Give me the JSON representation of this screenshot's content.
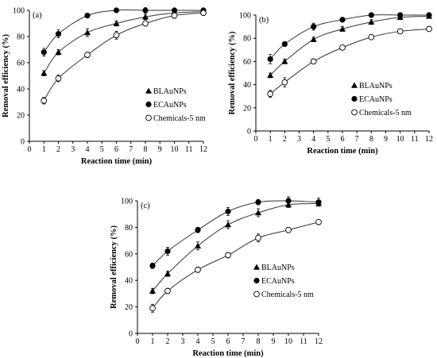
{
  "chart_data": [
    {
      "type": "scatter",
      "panel_label": "(a)",
      "xlabel": "Reaction time (min)",
      "ylabel": "Removal efficiency (%)",
      "xlim": [
        0,
        12
      ],
      "ylim": [
        0,
        100
      ],
      "xticks": [
        0,
        1,
        2,
        3,
        4,
        5,
        6,
        7,
        8,
        9,
        10,
        11,
        12
      ],
      "yticks": [
        0,
        20,
        40,
        60,
        80,
        100
      ],
      "grid": false,
      "legend_position": "bottom-right",
      "x": [
        1,
        2,
        4,
        6,
        8,
        10,
        12
      ],
      "series": [
        {
          "name": "BLAuNPs",
          "marker": "triangle",
          "values": [
            52,
            68,
            83,
            90,
            95,
            98,
            99
          ],
          "errors": [
            2,
            2,
            3,
            2,
            2,
            1.5,
            1.5
          ]
        },
        {
          "name": "ECAuNPs",
          "marker": "filled-circle",
          "values": [
            68,
            82,
            96,
            100,
            100,
            100,
            100
          ],
          "errors": [
            3,
            3,
            1.5,
            1,
            2,
            1,
            1
          ]
        },
        {
          "name": "Chemicals-5 nm",
          "marker": "open-circle",
          "values": [
            31,
            48,
            66,
            81,
            90,
            96,
            98
          ],
          "errors": [
            2.5,
            2.5,
            2,
            3,
            2,
            2,
            2
          ]
        }
      ]
    },
    {
      "type": "scatter",
      "panel_label": "(b)",
      "xlabel": "Reaction time (min)",
      "ylabel": "Removal efficiency (%)",
      "xlim": [
        0,
        12
      ],
      "ylim": [
        0,
        100
      ],
      "xticks": [
        0,
        1,
        2,
        3,
        4,
        5,
        6,
        7,
        8,
        9,
        10,
        11,
        12
      ],
      "yticks": [
        0,
        20,
        40,
        60,
        80,
        100
      ],
      "grid": false,
      "legend_position": "bottom-right",
      "x": [
        1,
        2,
        4,
        6,
        8,
        10,
        12
      ],
      "series": [
        {
          "name": "BLAuNPs",
          "marker": "triangle",
          "values": [
            48,
            60,
            79,
            88,
            94,
            98,
            99
          ],
          "errors": [
            2,
            2,
            2,
            2,
            2,
            1.5,
            1.5
          ]
        },
        {
          "name": "ECAuNPs",
          "marker": "filled-circle",
          "values": [
            62,
            75,
            90,
            96,
            100,
            100,
            100
          ],
          "errors": [
            4,
            2,
            3,
            2,
            1,
            1,
            1
          ]
        },
        {
          "name": "Chemicals-5 nm",
          "marker": "open-circle",
          "values": [
            32,
            42,
            60,
            72,
            81,
            86,
            88
          ],
          "errors": [
            3,
            4,
            2,
            2,
            2,
            2,
            2
          ]
        }
      ]
    },
    {
      "type": "scatter",
      "panel_label": "(c)",
      "xlabel": "Reaction time (min)",
      "ylabel": "Removal efficiency (%)",
      "xlim": [
        0,
        12
      ],
      "ylim": [
        0,
        100
      ],
      "xticks": [
        0,
        1,
        2,
        3,
        4,
        5,
        6,
        7,
        8,
        9,
        10,
        11,
        12
      ],
      "yticks": [
        0,
        20,
        40,
        60,
        80,
        100
      ],
      "grid": false,
      "legend_position": "bottom-right",
      "x": [
        1,
        2,
        4,
        6,
        8,
        10,
        12
      ],
      "series": [
        {
          "name": "BLAuNPs",
          "marker": "triangle",
          "values": [
            32,
            45,
            66,
            82,
            91,
            97,
            98
          ],
          "errors": [
            2,
            2,
            3,
            3,
            3,
            2,
            2
          ]
        },
        {
          "name": "ECAuNPs",
          "marker": "filled-circle",
          "values": [
            51,
            62,
            78,
            92,
            99,
            100,
            99
          ],
          "errors": [
            2,
            3,
            2,
            3,
            2,
            3,
            3
          ]
        },
        {
          "name": "Chemicals-5 nm",
          "marker": "open-circle",
          "values": [
            19,
            32,
            48,
            59,
            72,
            78,
            84
          ],
          "errors": [
            3,
            2,
            2,
            2,
            3,
            2,
            1.5
          ]
        }
      ]
    }
  ]
}
